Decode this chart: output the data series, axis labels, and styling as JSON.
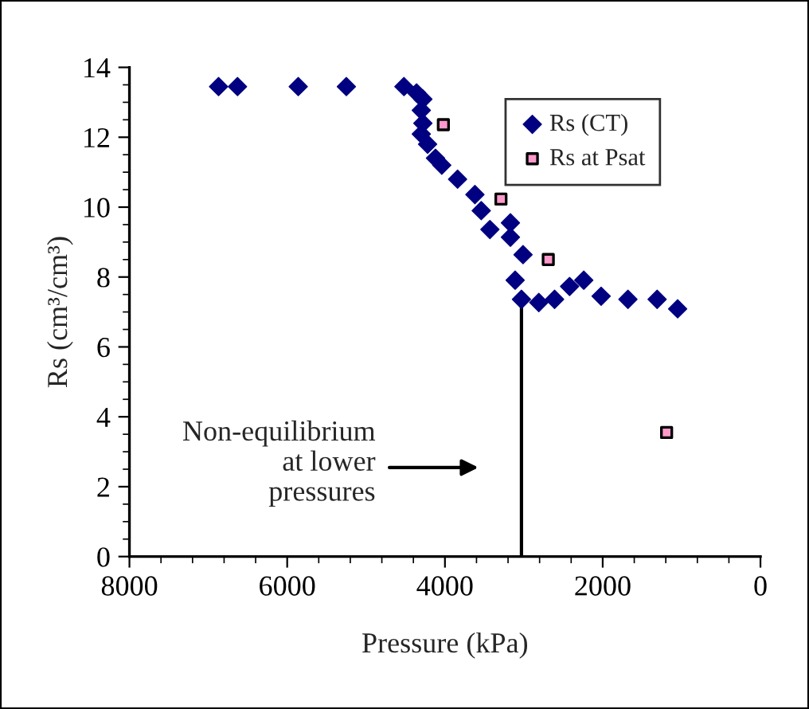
{
  "chart_data": {
    "type": "scatter",
    "xlabel": "Pressure (kPa)",
    "ylabel": "Rs (cm³/cm³)",
    "xlim": [
      8000,
      0
    ],
    "xticks": [
      8000,
      6000,
      4000,
      2000,
      0
    ],
    "ylim": [
      0,
      14
    ],
    "yticks": [
      0,
      2,
      4,
      6,
      8,
      10,
      12,
      14
    ],
    "grid": false,
    "legend": "top right",
    "series": [
      {
        "name": "Rs (CT)",
        "color": "#000080",
        "marker": "diamond",
        "x": [
          6870,
          6630,
          5860,
          5250,
          4520,
          4360,
          4280,
          4300,
          4280,
          4300,
          4220,
          4120,
          4040,
          3840,
          3620,
          3540,
          3430,
          3170,
          3170,
          3010,
          3110,
          3030,
          2810,
          2610,
          2420,
          2240,
          2020,
          1680,
          1310,
          1050
        ],
        "values": [
          13.45,
          13.45,
          13.45,
          13.45,
          13.45,
          13.27,
          13.09,
          12.77,
          12.4,
          12.09,
          11.8,
          11.4,
          11.2,
          10.8,
          10.36,
          9.9,
          9.36,
          9.55,
          9.14,
          8.64,
          7.91,
          7.36,
          7.27,
          7.36,
          7.73,
          7.91,
          7.45,
          7.36,
          7.36,
          7.09
        ]
      },
      {
        "name": "Rs at Psat",
        "color": "#ff99cc",
        "marker": "square",
        "x": [
          4020,
          3290,
          2690,
          1190
        ],
        "values": [
          12.36,
          10.23,
          8.5,
          3.55
        ]
      },
      {
        "type": "line",
        "color": "#000000",
        "marker": "none",
        "x": [
          3030,
          3030
        ],
        "values": [
          0,
          7.36
        ]
      }
    ],
    "annotations": [
      "Non-equilibrium\nat lower\npressures"
    ]
  }
}
